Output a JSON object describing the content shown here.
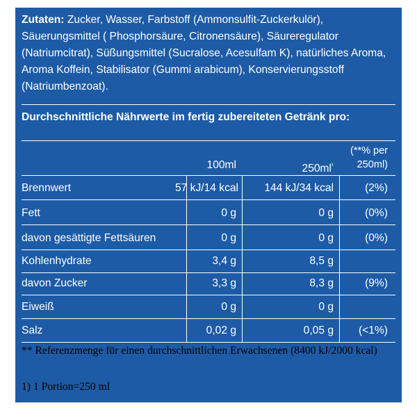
{
  "ingredients": {
    "label": "Zutaten:",
    "text": " Zucker, Wasser, Farbstoff (Ammonsulfit-Zuckerkulör), Säuerungsmittel ( Phosphorsäure, Citronensäure), Säureregulator (Natriumcitrat), Süßungsmittel (Sucralose, Acesulfam K), natürliches Aroma, Aroma Koffein, Stabilisator (Gummi arabicum), Konservierungsstoff (Natriumbenzoat)."
  },
  "nutrition": {
    "title": "Durchschnittliche Nährwerte im fertig zubereiteten Getränk pro:",
    "columns": [
      "100ml",
      "250ml",
      "(**% per 250ml)"
    ],
    "col2_marker": "¹",
    "rows": [
      {
        "name": "Brennwert",
        "per100": "57 kJ/14 kcal",
        "per250": "144 kJ/34 kcal",
        "pct": "(2%)"
      },
      {
        "name": "Fett",
        "per100": "0 g",
        "per250": "0 g",
        "pct": "(0%)"
      },
      {
        "name": "davon gesättigte Fettsäuren",
        "per100": "0 g",
        "per250": "0 g",
        "pct": "(0%)"
      },
      {
        "name": "Kohlenhydrate",
        "per100": "3,4 g",
        "per250": "8,5 g",
        "pct": ""
      },
      {
        "name": "davon Zucker",
        "per100": "3,3 g",
        "per250": "8,3 g",
        "pct": "(9%)"
      },
      {
        "name": "Eiweiß",
        "per100": "0 g",
        "per250": "0 g",
        "pct": ""
      },
      {
        "name": "Salz",
        "per100": "0,02 g",
        "per250": "0,05 g",
        "pct": "(<1%)"
      }
    ]
  },
  "footnote": "** Referenzmenge für einen durchschnittlichen Erwachsenen (8400 kJ/2000 kcal)",
  "portion_note": "1) 1 Portion=250 ml",
  "colors": {
    "background": "#1d5ba6",
    "text": "#ffffff"
  }
}
